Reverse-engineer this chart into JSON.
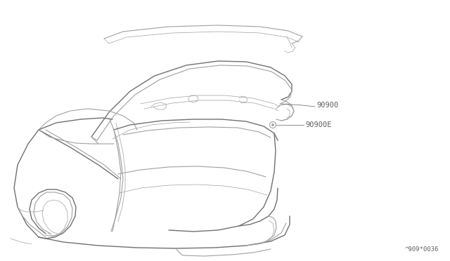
{
  "bg_color": "#ffffff",
  "line_color": "#a0a0a0",
  "line_color_dark": "#707070",
  "label_color": "#606060",
  "labels": [
    "90900",
    "90900E"
  ],
  "diagram_code": "^909*0036",
  "label_fontsize": 7.5,
  "code_fontsize": 6.5
}
